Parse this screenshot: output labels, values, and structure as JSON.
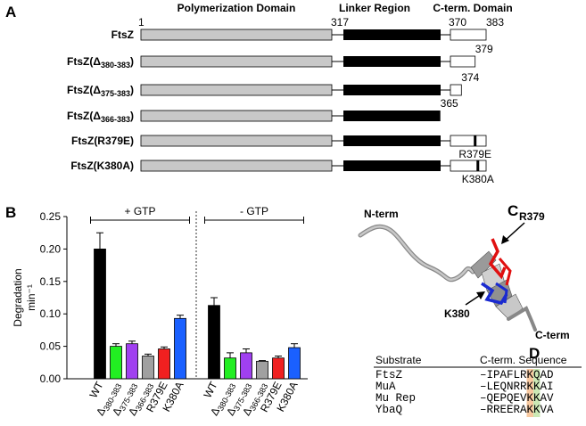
{
  "panel_a": {
    "letter": "A",
    "headers": [
      "Polymerization Domain",
      "Linker Region",
      "C-term. Domain"
    ],
    "constructs": [
      {
        "label": "FtsZ",
        "start": 1,
        "linker_start": 317,
        "cterm_start": 370,
        "end": 383
      },
      {
        "label": "FtsZ(Δ380-383)",
        "end": 379
      },
      {
        "label": "FtsZ(Δ375-383)",
        "end": 374
      },
      {
        "label": "FtsZ(Δ366-383)",
        "end": 365
      },
      {
        "label": "FtsZ(R379E)",
        "mutation": "R379E"
      },
      {
        "label": "FtsZ(K380A)",
        "mutation": "K380A"
      }
    ]
  },
  "chart_data": {
    "type": "bar",
    "letter": "B",
    "ylabel_lines": [
      "Degradation",
      "min⁻¹"
    ],
    "categories": [
      "WT",
      "Δ380-383",
      "Δ375-383",
      "Δ366-383",
      "R379E",
      "K380A"
    ],
    "colors": [
      "#000000",
      "#22ee22",
      "#a040f0",
      "#a0a0a0",
      "#f02020",
      "#1a60ff"
    ],
    "groups": [
      {
        "label": "+ GTP",
        "values": [
          0.2,
          0.05,
          0.054,
          0.035,
          0.046,
          0.093
        ],
        "errors": [
          0.025,
          0.004,
          0.004,
          0.003,
          0.003,
          0.005
        ]
      },
      {
        "label": "- GTP",
        "values": [
          0.113,
          0.032,
          0.04,
          0.027,
          0.032,
          0.048
        ],
        "errors": [
          0.012,
          0.008,
          0.006,
          0.001,
          0.003,
          0.006
        ]
      }
    ],
    "ylim": [
      0,
      0.25
    ],
    "yticks": [
      {
        "value": 0,
        "label": "0.00"
      },
      {
        "value": 0.05,
        "label": "0.05"
      },
      {
        "value": 0.1,
        "label": "0.10"
      },
      {
        "value": 0.15,
        "label": "0.15"
      },
      {
        "value": 0.2,
        "label": "0.20"
      },
      {
        "value": 0.25,
        "label": "0.25"
      }
    ]
  },
  "panel_c": {
    "letter": "C",
    "labels": [
      "N-term",
      "R379",
      "K380",
      "C-term"
    ]
  },
  "panel_d": {
    "letter": "D",
    "headers": [
      "Substrate",
      "C-term. Sequence"
    ],
    "rows": [
      [
        "FtsZ",
        "–IPAFLRKQAD"
      ],
      [
        "MuA",
        "–LEQNRRKKAI"
      ],
      [
        "Mu Rep",
        "–QEPQEVKKAV"
      ],
      [
        "YbaQ",
        "–RREERAKKVA"
      ]
    ]
  }
}
